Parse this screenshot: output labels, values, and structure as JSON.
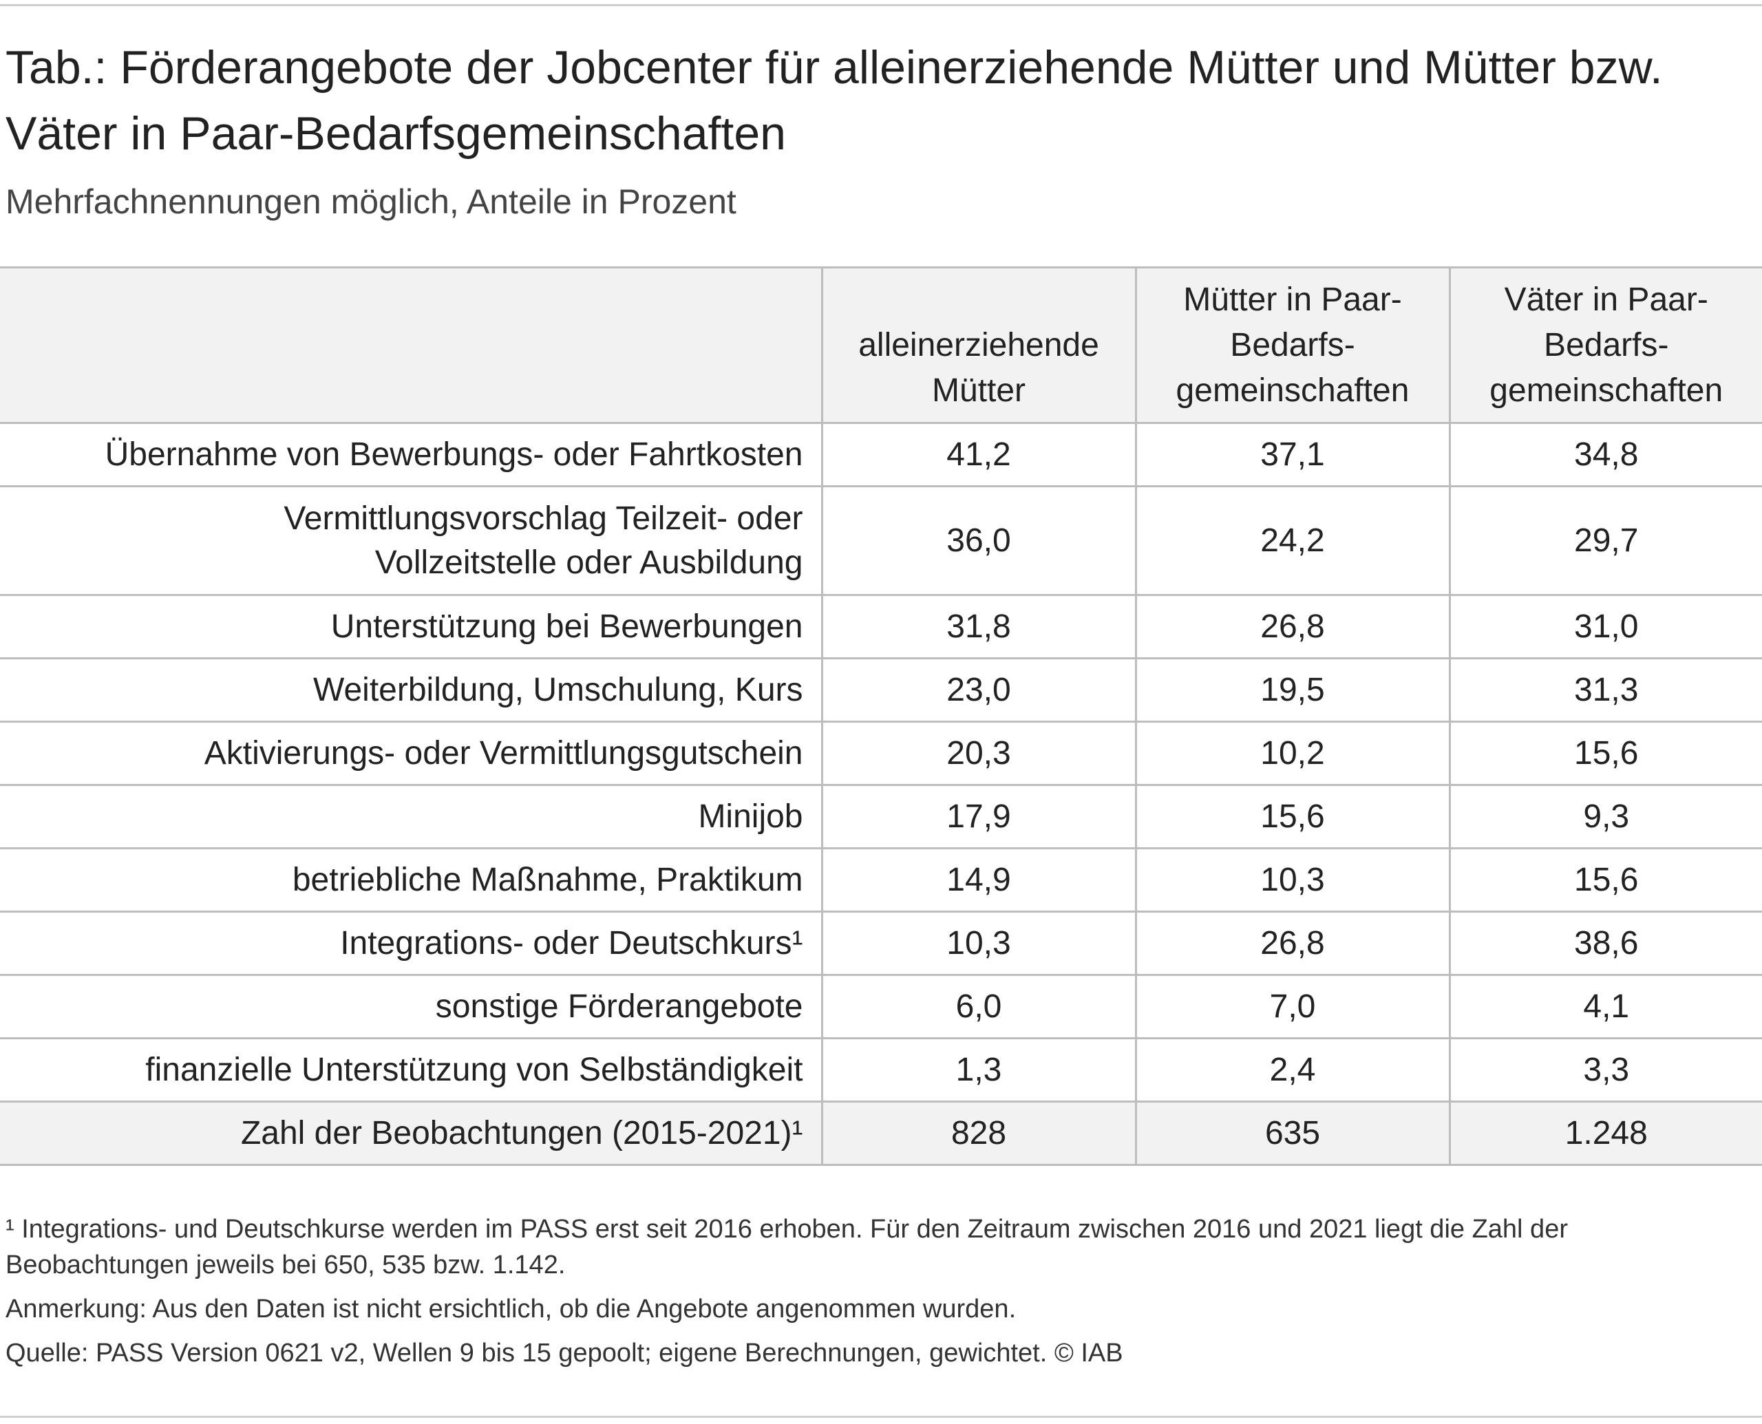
{
  "title": "Tab.: Förderangebote der Jobcenter für alleinerziehende Mütter und Mütter bzw. Väter in Paar-Bedarfsgemeinschaften",
  "subtitle": "Mehrfachnennungen möglich, Anteile in Prozent",
  "chart_data": {
    "type": "table",
    "columns": [
      "",
      "alleinerziehende Mütter",
      "Mütter in Paar-Bedarfs-gemeinschaften",
      "Väter in Paar-Bedarfs-gemeinschaften"
    ],
    "rows": [
      {
        "label": "Übernahme von Bewerbungs- oder Fahrtkosten",
        "values": [
          "41,2",
          "37,1",
          "34,8"
        ]
      },
      {
        "label": "Vermittlungsvorschlag Teilzeit- oder Vollzeitstelle oder Ausbildung",
        "values": [
          "36,0",
          "24,2",
          "29,7"
        ]
      },
      {
        "label": "Unterstützung bei Bewerbungen",
        "values": [
          "31,8",
          "26,8",
          "31,0"
        ]
      },
      {
        "label": "Weiterbildung, Umschulung, Kurs",
        "values": [
          "23,0",
          "19,5",
          "31,3"
        ]
      },
      {
        "label": "Aktivierungs- oder Vermittlungsgutschein",
        "values": [
          "20,3",
          "10,2",
          "15,6"
        ]
      },
      {
        "label": "Minijob",
        "values": [
          "17,9",
          "15,6",
          "9,3"
        ]
      },
      {
        "label": "betriebliche Maßnahme, Praktikum",
        "values": [
          "14,9",
          "10,3",
          "15,6"
        ]
      },
      {
        "label": "Integrations- oder Deutschkurs¹",
        "values": [
          "10,3",
          "26,8",
          "38,6"
        ]
      },
      {
        "label": "sonstige Förderangebote",
        "values": [
          "6,0",
          "7,0",
          "4,1"
        ]
      },
      {
        "label": "finanzielle Unterstützung von Selbständigkeit",
        "values": [
          "1,3",
          "2,4",
          "3,3"
        ]
      }
    ],
    "total_row": {
      "label": "Zahl der Beobachtungen (2015-2021)¹",
      "values": [
        "828",
        "635",
        "1.248"
      ]
    }
  },
  "footnotes": {
    "note1": "¹ Integrations- und Deutschkurse werden im PASS erst seit 2016 erhoben. Für den Zeitraum zwischen 2016 und 2021 liegt die Zahl der Beobachtungen jeweils bei 650, 535 bzw. 1.142.",
    "remark": "Anmerkung: Aus den Daten ist nicht ersichtlich, ob die Angebote angenommen wurden.",
    "source": "Quelle: PASS Version 0621 v2, Wellen 9 bis 15 gepoolt; eigene Berechnungen, gewichtet.  © IAB"
  },
  "colors": {
    "header_bg": "#f2f2f2",
    "grid": "#bdbdbd",
    "text": "#222222"
  }
}
